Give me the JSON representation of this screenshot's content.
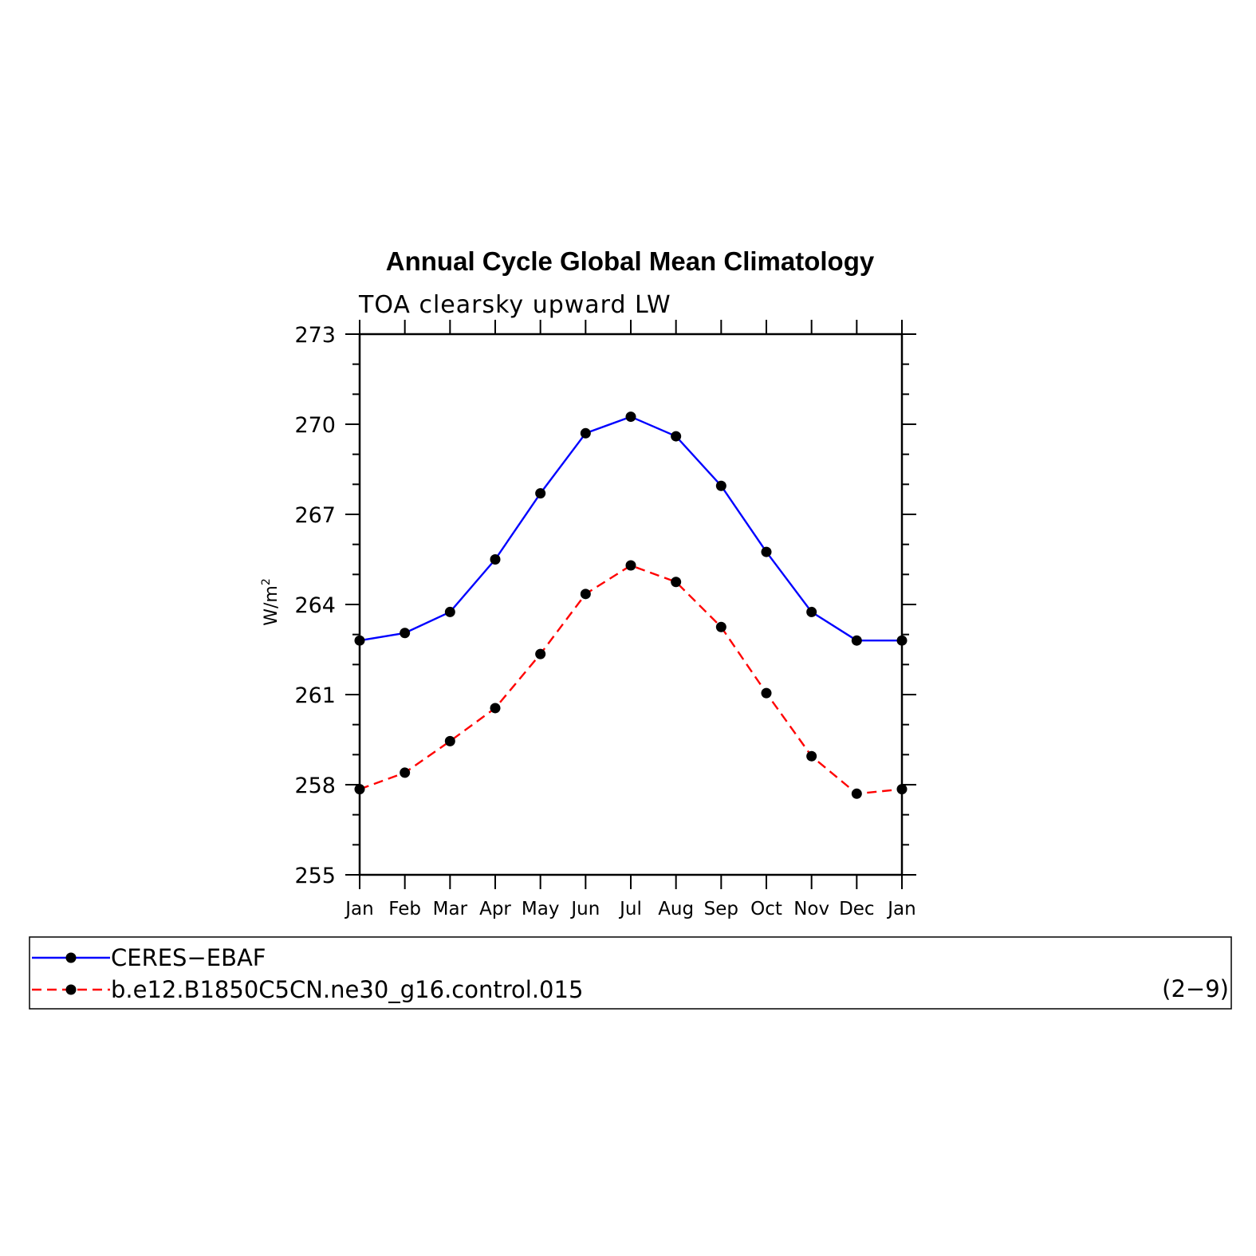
{
  "chart_data": {
    "type": "line",
    "title": "Annual Cycle Global Mean Climatology",
    "subtitle": "TOA clearsky upward LW",
    "ylabel": "W/m",
    "ylabel_superscript": "2",
    "xlabel": "",
    "ylim": [
      255,
      273
    ],
    "yticks": [
      255,
      258,
      261,
      264,
      267,
      270,
      273
    ],
    "categories": [
      "Jan",
      "Feb",
      "Mar",
      "Apr",
      "May",
      "Jun",
      "Jul",
      "Aug",
      "Sep",
      "Oct",
      "Nov",
      "Dec",
      "Jan"
    ],
    "series": [
      {
        "name": "CERES−EBAF",
        "color": "#0000ff",
        "dash": "solid",
        "values": [
          262.8,
          263.05,
          263.75,
          265.5,
          267.7,
          269.7,
          270.25,
          269.6,
          267.95,
          265.75,
          263.75,
          262.8,
          262.8
        ]
      },
      {
        "name": "b.e12.B1850C5CN.ne30_g16.control.015",
        "color": "#ff0000",
        "dash": "dashed",
        "values": [
          257.85,
          258.4,
          259.45,
          260.55,
          262.35,
          264.35,
          265.3,
          264.75,
          263.25,
          261.05,
          258.95,
          257.7,
          257.85
        ]
      }
    ],
    "grid": false,
    "legend_position": "bottom",
    "legend_note": "(2−9)",
    "marker_color": "#000000"
  }
}
